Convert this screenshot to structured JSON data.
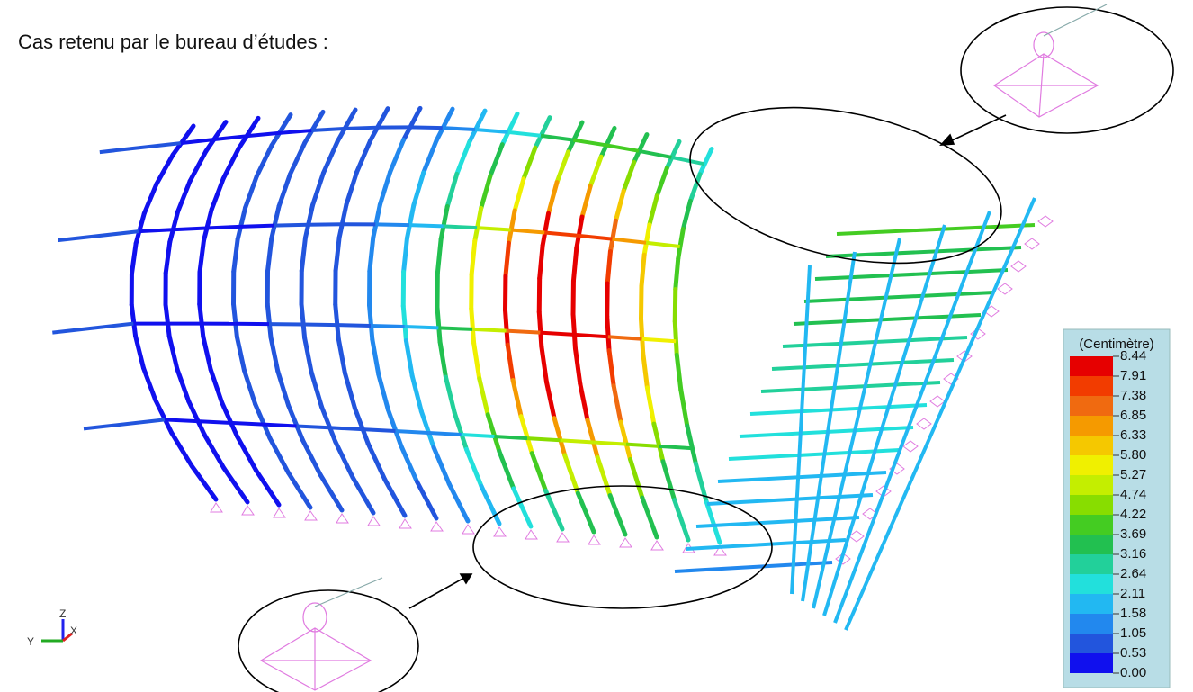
{
  "header": {
    "title": "Cas retenu par le bureau d’études :"
  },
  "legend": {
    "unit": "(Centimètre)",
    "labels": [
      "8.44",
      "7.91",
      "7.38",
      "6.85",
      "6.33",
      "5.80",
      "5.27",
      "4.74",
      "4.22",
      "3.69",
      "3.16",
      "2.64",
      "2.11",
      "1.58",
      "1.05",
      "0.53",
      "0.00"
    ],
    "colors": [
      "#e60000",
      "#f23c00",
      "#f06a10",
      "#f59a00",
      "#f5c800",
      "#f0f000",
      "#c4ee00",
      "#88dd00",
      "#44cc22",
      "#22c050",
      "#22d09a",
      "#22e0dc",
      "#22b8f2",
      "#2288ee",
      "#2255dd",
      "#1010ee"
    ]
  },
  "axes": {
    "x": "X",
    "y": "Y",
    "z": "Z"
  }
}
